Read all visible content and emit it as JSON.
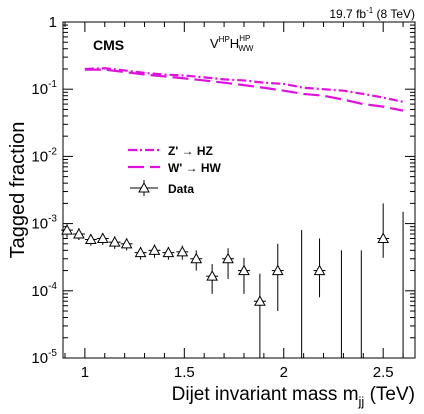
{
  "chart_data": {
    "type": "scatter",
    "lumi_label": {
      "value": "19.7 fb",
      "sup": "-1",
      "suffix": " (8 TeV)"
    },
    "experiment": "CMS",
    "category": {
      "base": "V",
      "sup1": "HP",
      "mid": "H",
      "sup2": "HP",
      "sub2": "WW"
    },
    "xlabel": {
      "base": "Dijet invariant mass m",
      "sub": "jj",
      "suffix": " (TeV)"
    },
    "ylabel": "Tagged fraction",
    "xlim": [
      0.89,
      2.66
    ],
    "ylim": [
      1e-05,
      1
    ],
    "y_scale": "log",
    "x_ticks": [
      1,
      1.5,
      2,
      2.5
    ],
    "x_tick_labels": [
      "1",
      "1.5",
      "2",
      "2.5"
    ],
    "y_ticks": [
      1,
      0.1,
      0.01,
      0.001,
      0.0001,
      1e-05
    ],
    "y_tick_labels": [
      {
        "base": "1",
        "exp": ""
      },
      {
        "base": "10",
        "exp": "-1"
      },
      {
        "base": "10",
        "exp": "-2"
      },
      {
        "base": "10",
        "exp": "-3"
      },
      {
        "base": "10",
        "exp": "-4"
      },
      {
        "base": "10",
        "exp": "-5"
      }
    ],
    "legend_position": "center-left",
    "series": [
      {
        "name": "Z' → HZ",
        "style": "dash-dot",
        "color": "#e010e0",
        "x": [
          1.0,
          1.1,
          1.2,
          1.3,
          1.4,
          1.5,
          1.6,
          1.7,
          1.8,
          1.9,
          2.0,
          2.1,
          2.2,
          2.3,
          2.4,
          2.5,
          2.6
        ],
        "y": [
          0.2,
          0.205,
          0.19,
          0.175,
          0.165,
          0.16,
          0.15,
          0.14,
          0.135,
          0.125,
          0.12,
          0.105,
          0.1,
          0.095,
          0.085,
          0.075,
          0.065
        ]
      },
      {
        "name": "W' → HW",
        "style": "long-dash",
        "color": "#e010e0",
        "x": [
          1.0,
          1.1,
          1.2,
          1.3,
          1.4,
          1.5,
          1.6,
          1.7,
          1.8,
          1.9,
          2.0,
          2.1,
          2.2,
          2.3,
          2.4,
          2.5,
          2.6
        ],
        "y": [
          0.195,
          0.195,
          0.18,
          0.165,
          0.155,
          0.145,
          0.135,
          0.125,
          0.115,
          0.105,
          0.095,
          0.085,
          0.08,
          0.07,
          0.06,
          0.055,
          0.048
        ]
      },
      {
        "name": "Data",
        "style": "open-triangle",
        "color": "#000000",
        "x": [
          0.91,
          0.97,
          1.03,
          1.09,
          1.15,
          1.21,
          1.28,
          1.35,
          1.42,
          1.49,
          1.56,
          1.64,
          1.72,
          1.8,
          1.88,
          1.97,
          2.18,
          2.5
        ],
        "y": [
          0.0008,
          0.0007,
          0.00058,
          0.0006,
          0.00053,
          0.0005,
          0.00037,
          0.0004,
          0.00037,
          0.00038,
          0.0003,
          0.000165,
          0.0003,
          0.0002,
          7e-05,
          0.0002,
          0.0002,
          0.0006
        ],
        "y_err_lo": [
          0.00062,
          0.00057,
          0.00047,
          0.00048,
          0.00042,
          0.0004,
          0.00029,
          0.00031,
          0.00029,
          0.00029,
          0.0002,
          9e-05,
          0.00015,
          9e-05,
          1e-05,
          5e-05,
          8e-05,
          0.00031
        ],
        "y_err_hi": [
          0.00098,
          0.00086,
          0.0007,
          0.00072,
          0.00065,
          0.0006,
          0.00045,
          0.00049,
          0.00045,
          0.00047,
          0.0004,
          0.00025,
          0.00043,
          0.00031,
          0.00018,
          0.0005,
          0.0006,
          0.002
        ],
        "x_err": 0.03
      }
    ],
    "empty_bin_errors": {
      "x": [
        2.09,
        2.29,
        2.39,
        2.6
      ],
      "y_hi": [
        0.0008,
        0.0004,
        0.0004,
        0.0015
      ]
    }
  }
}
